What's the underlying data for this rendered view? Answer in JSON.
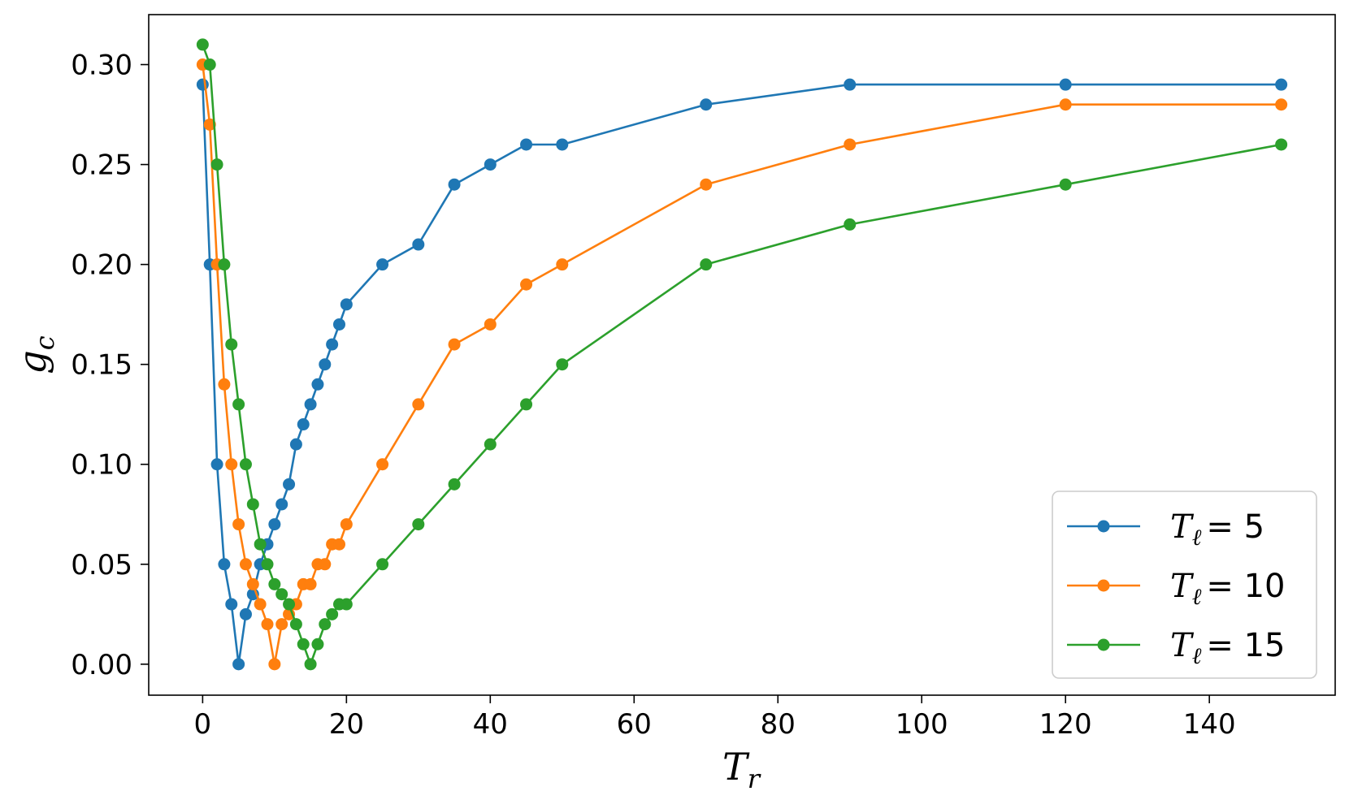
{
  "chart_data": {
    "type": "line",
    "title": "",
    "xlabel": "T",
    "xlabel_sub": "r",
    "ylabel": "g",
    "ylabel_sub": "c",
    "xlim": [
      -7.5,
      157.5
    ],
    "ylim": [
      -0.0155,
      0.325
    ],
    "xticks": [
      0,
      20,
      40,
      60,
      80,
      100,
      120,
      140
    ],
    "yticks": [
      0.0,
      0.05,
      0.1,
      0.15,
      0.2,
      0.25,
      0.3
    ],
    "xtick_labels": [
      "0",
      "20",
      "40",
      "60",
      "80",
      "100",
      "120",
      "140"
    ],
    "ytick_labels": [
      "0.00",
      "0.05",
      "0.10",
      "0.15",
      "0.20",
      "0.25",
      "0.30"
    ],
    "grid": false,
    "legend_position": "lower-right",
    "series": [
      {
        "name": "Tℓ = 5",
        "legend_var": "T",
        "legend_sub": "ℓ",
        "legend_value": "= 5",
        "color": "#1f77b4",
        "x": [
          0,
          1,
          2,
          3,
          4,
          5,
          6,
          7,
          8,
          9,
          10,
          11,
          12,
          13,
          14,
          15,
          16,
          17,
          18,
          19,
          20,
          25,
          30,
          35,
          40,
          45,
          50,
          70,
          90,
          120,
          150
        ],
        "y": [
          0.29,
          0.2,
          0.1,
          0.05,
          0.03,
          0.0,
          0.025,
          0.035,
          0.05,
          0.06,
          0.07,
          0.08,
          0.09,
          0.11,
          0.12,
          0.13,
          0.14,
          0.15,
          0.16,
          0.17,
          0.18,
          0.2,
          0.21,
          0.24,
          0.25,
          0.26,
          0.26,
          0.28,
          0.29,
          0.29,
          0.29
        ]
      },
      {
        "name": "Tℓ = 10",
        "legend_var": "T",
        "legend_sub": "ℓ",
        "legend_value": "= 10",
        "color": "#ff7f0e",
        "x": [
          0,
          1,
          2,
          3,
          4,
          5,
          6,
          7,
          8,
          9,
          10,
          11,
          12,
          13,
          14,
          15,
          16,
          17,
          18,
          19,
          20,
          25,
          30,
          35,
          40,
          45,
          50,
          70,
          90,
          120,
          150
        ],
        "y": [
          0.3,
          0.27,
          0.2,
          0.14,
          0.1,
          0.07,
          0.05,
          0.04,
          0.03,
          0.02,
          0.0,
          0.02,
          0.025,
          0.03,
          0.04,
          0.04,
          0.05,
          0.05,
          0.06,
          0.06,
          0.07,
          0.1,
          0.13,
          0.16,
          0.17,
          0.19,
          0.2,
          0.24,
          0.26,
          0.28,
          0.28
        ]
      },
      {
        "name": "Tℓ = 15",
        "legend_var": "T",
        "legend_sub": "ℓ",
        "legend_value": "= 15",
        "color": "#2ca02c",
        "x": [
          0,
          1,
          2,
          3,
          4,
          5,
          6,
          7,
          8,
          9,
          10,
          11,
          12,
          13,
          14,
          15,
          16,
          17,
          18,
          19,
          20,
          25,
          30,
          35,
          40,
          45,
          50,
          70,
          90,
          120,
          150
        ],
        "y": [
          0.31,
          0.3,
          0.25,
          0.2,
          0.16,
          0.13,
          0.1,
          0.08,
          0.06,
          0.05,
          0.04,
          0.035,
          0.03,
          0.02,
          0.01,
          0.0,
          0.01,
          0.02,
          0.025,
          0.03,
          0.03,
          0.05,
          0.07,
          0.09,
          0.11,
          0.13,
          0.15,
          0.2,
          0.22,
          0.24,
          0.26
        ]
      }
    ]
  }
}
